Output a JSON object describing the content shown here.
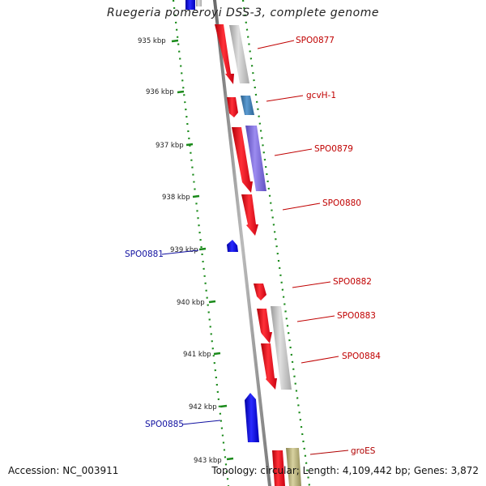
{
  "title": "Ruegeria pomeroyi DSS-3, complete genome",
  "footer": {
    "accession": "Accession: NC_003911",
    "summary": "Topology: circular; Length: 4,109,442 bp; Genes: 3,872"
  },
  "colors": {
    "forward_cds": "#e8101a",
    "reverse_cds": "#1414e0",
    "label_forward": "#c00000",
    "label_reverse": "#1010a0",
    "label_groES": "#b00000",
    "tick": "#1a8a1a",
    "backbone": "#888888"
  },
  "ticks": [
    "935 kbp",
    "936 kbp",
    "937 kbp",
    "938 kbp",
    "939 kbp",
    "940 kbp",
    "941 kbp",
    "942 kbp",
    "943 kbp"
  ],
  "genes": [
    {
      "label": "SPO0877",
      "strand": "forward"
    },
    {
      "label": "gcvH-1",
      "strand": "forward"
    },
    {
      "label": "SPO0879",
      "strand": "forward"
    },
    {
      "label": "SPO0880",
      "strand": "forward"
    },
    {
      "label": "SPO0881",
      "strand": "reverse"
    },
    {
      "label": "SPO0882",
      "strand": "forward"
    },
    {
      "label": "SPO0883",
      "strand": "forward"
    },
    {
      "label": "SPO0884",
      "strand": "forward"
    },
    {
      "label": "SPO0885",
      "strand": "reverse"
    },
    {
      "label": "groES",
      "strand": "forward"
    }
  ]
}
